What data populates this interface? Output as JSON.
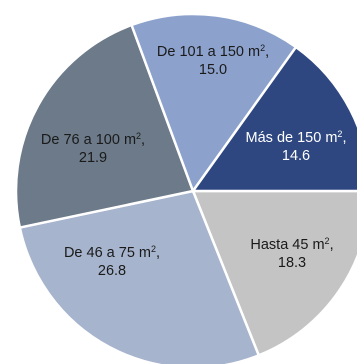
{
  "chart_data": {
    "type": "pie",
    "start_angle_deg": 0,
    "direction": "clockwise",
    "slices": [
      {
        "category": "Hasta 45 m",
        "sup": "2",
        "sep": ",",
        "value_text": "18.3",
        "value": 18.3,
        "color": "#c4c4c4",
        "text_color": "#1a1a1a"
      },
      {
        "category": "De 46 a 75 m",
        "sup": "2",
        "sep": ",",
        "value_text": "26.8",
        "value": 26.8,
        "color": "#a7b4cd",
        "text_color": "#1a1a1a"
      },
      {
        "category": "De 76 a 100 m",
        "sup": "2",
        "sep": ",",
        "value_text": "21.9",
        "value": 21.9,
        "color": "#6c7a89",
        "text_color": "#1a1a1a"
      },
      {
        "category": "De 101 a 150 m",
        "sup": "2",
        "sep": ",",
        "value_text": "15.0",
        "value": 15.0,
        "color": "#8ca2cd",
        "text_color": "#1a1a1a"
      },
      {
        "category": "Más de 150 m",
        "sup": "2",
        "sep": ",",
        "value_text": "14.6",
        "value": 14.6,
        "color": "#2f4781",
        "text_color": "#ffffff"
      }
    ]
  }
}
